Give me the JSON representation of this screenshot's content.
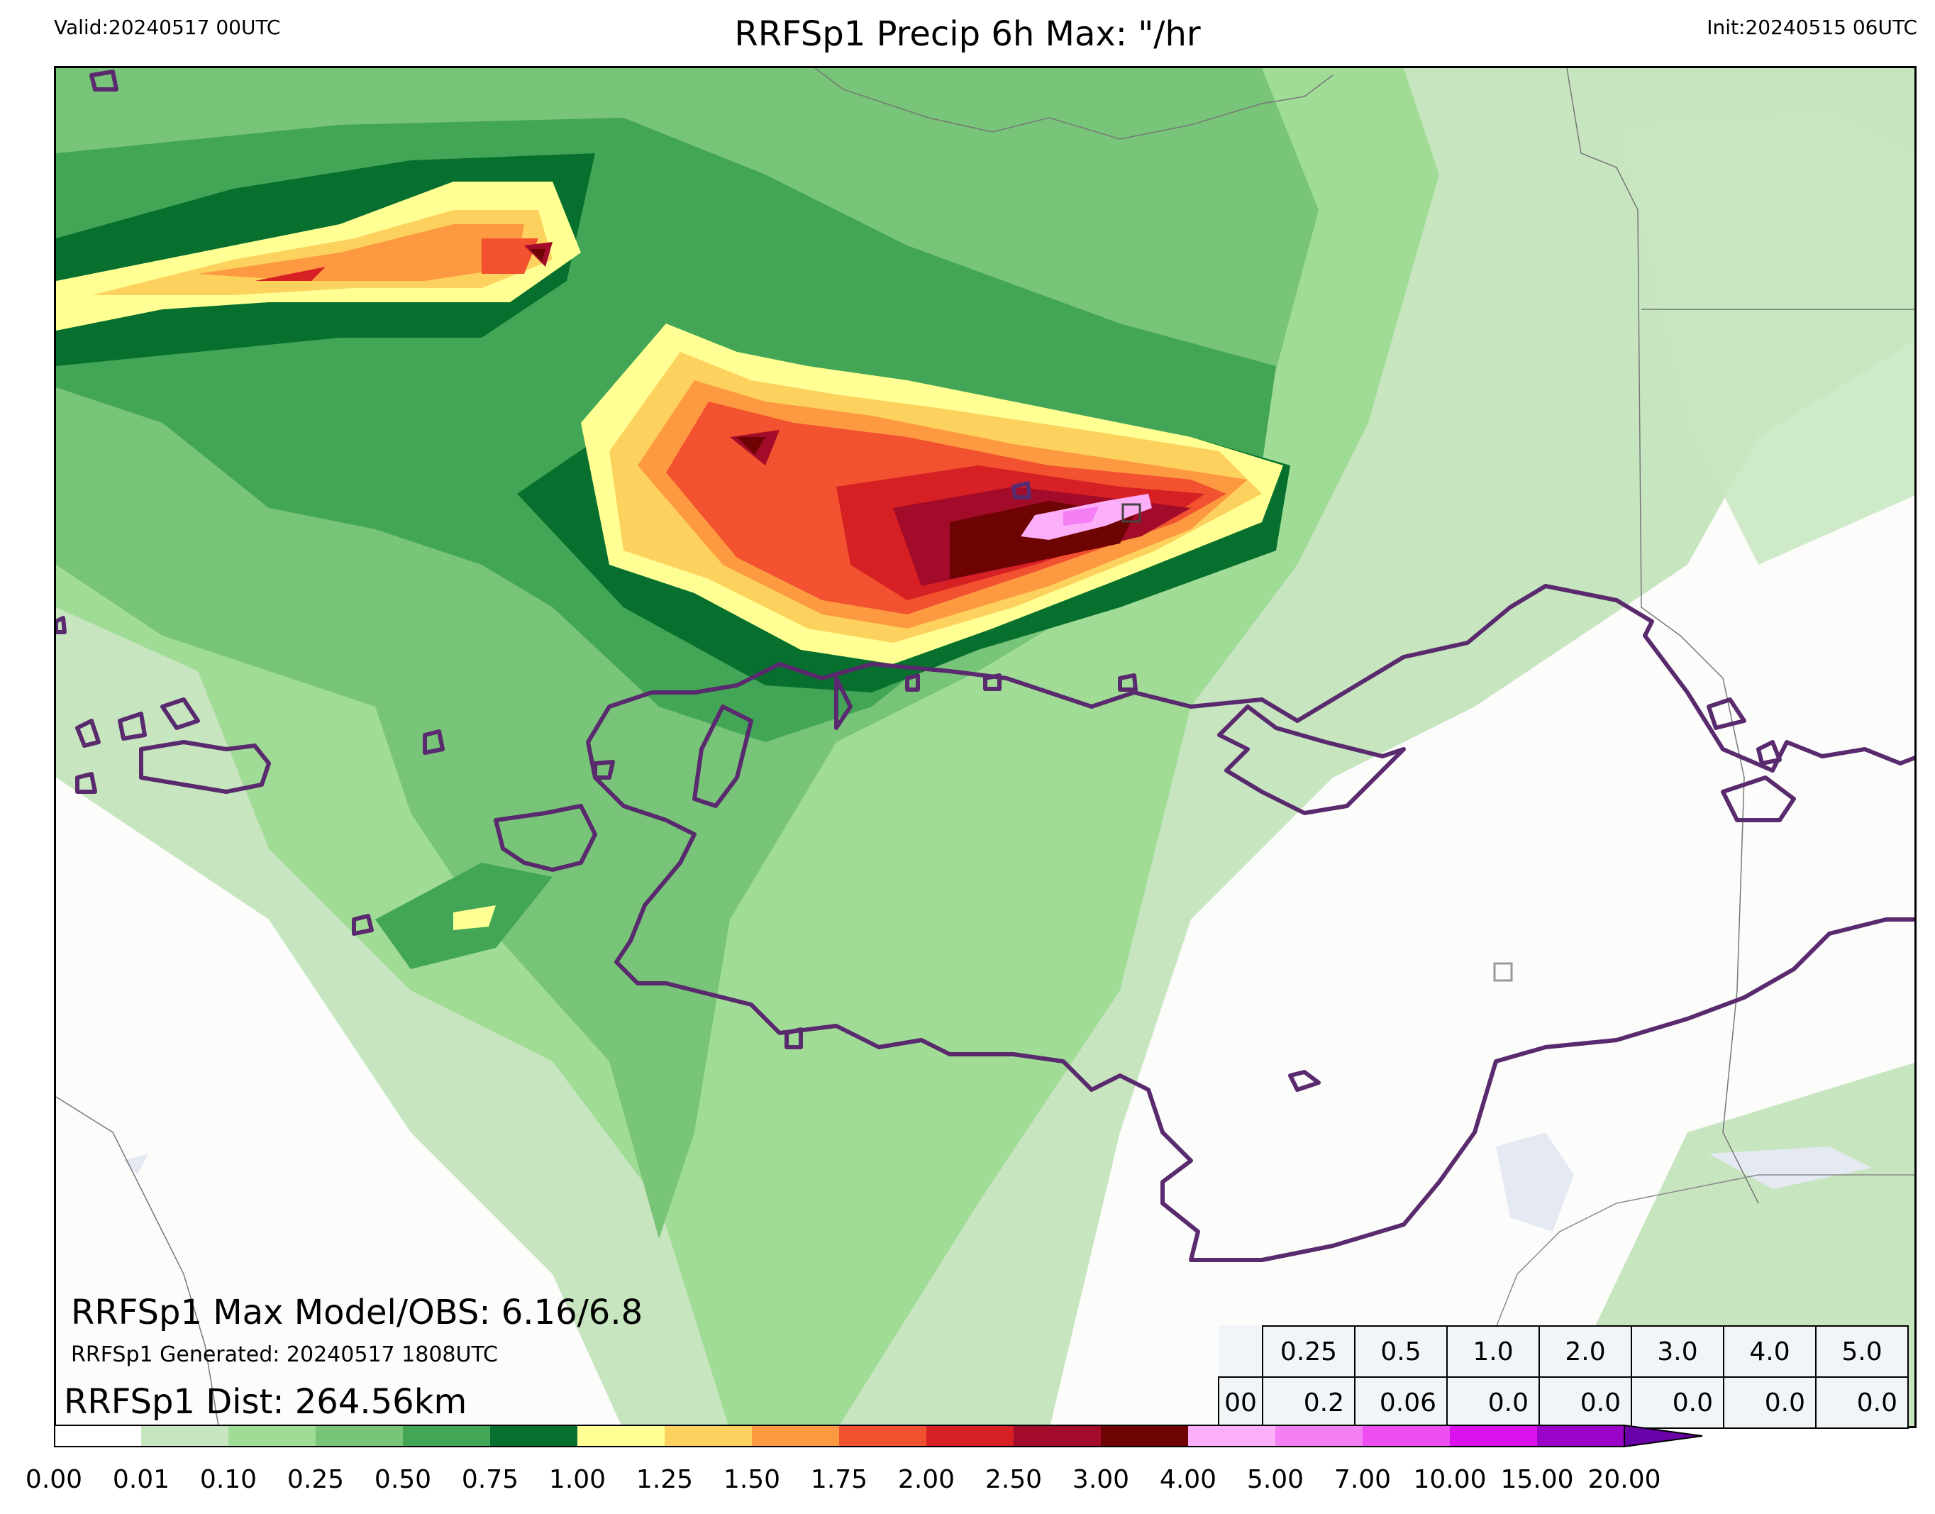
{
  "header": {
    "valid": "Valid:20240517 00UTC",
    "title": "RRFSp1 Precip 6h Max: \"/hr",
    "init": "Init:20240515 06UTC"
  },
  "annotations": {
    "max_model_obs": "RRFSp1 Max Model/OBS: 6.16/6.8",
    "generated": "RRFSp1 Generated: 20240517 1808UTC",
    "dist": "RRFSp1 Dist: 264.56km"
  },
  "stats_table": {
    "thresholds": [
      "0.25",
      "0.5",
      "1.0",
      "2.0",
      "3.0",
      "4.0",
      "5.0"
    ],
    "row_label": "00",
    "values": [
      "0.2",
      "0.06",
      "0.0",
      "0.0",
      "0.0",
      "0.0",
      "0.0"
    ]
  },
  "colorbar": {
    "levels": [
      "0.00",
      "0.01",
      "0.10",
      "0.25",
      "0.50",
      "0.75",
      "1.00",
      "1.25",
      "1.50",
      "1.75",
      "2.00",
      "2.50",
      "3.00",
      "4.00",
      "5.00",
      "7.00",
      "10.00",
      "15.00",
      "20.00"
    ],
    "colors": [
      "#ffffff",
      "#c7e6c0",
      "#a1dc97",
      "#78c478",
      "#43a656",
      "#08702e",
      "#ffff94",
      "#fdd15d",
      "#fd9a41",
      "#f2522f",
      "#d72024",
      "#a30b2a",
      "#6e0303",
      "#fcaef8",
      "#f47ff4",
      "#ec4ef1",
      "#da12f0",
      "#9a04c8"
    ],
    "extend_color": "#6a00a8"
  },
  "map_colors": {
    "outline": "#5a2a6e",
    "obs_box_dark": "#444444",
    "obs_box_gray": "#999999",
    "water": "#e4e9f2"
  }
}
